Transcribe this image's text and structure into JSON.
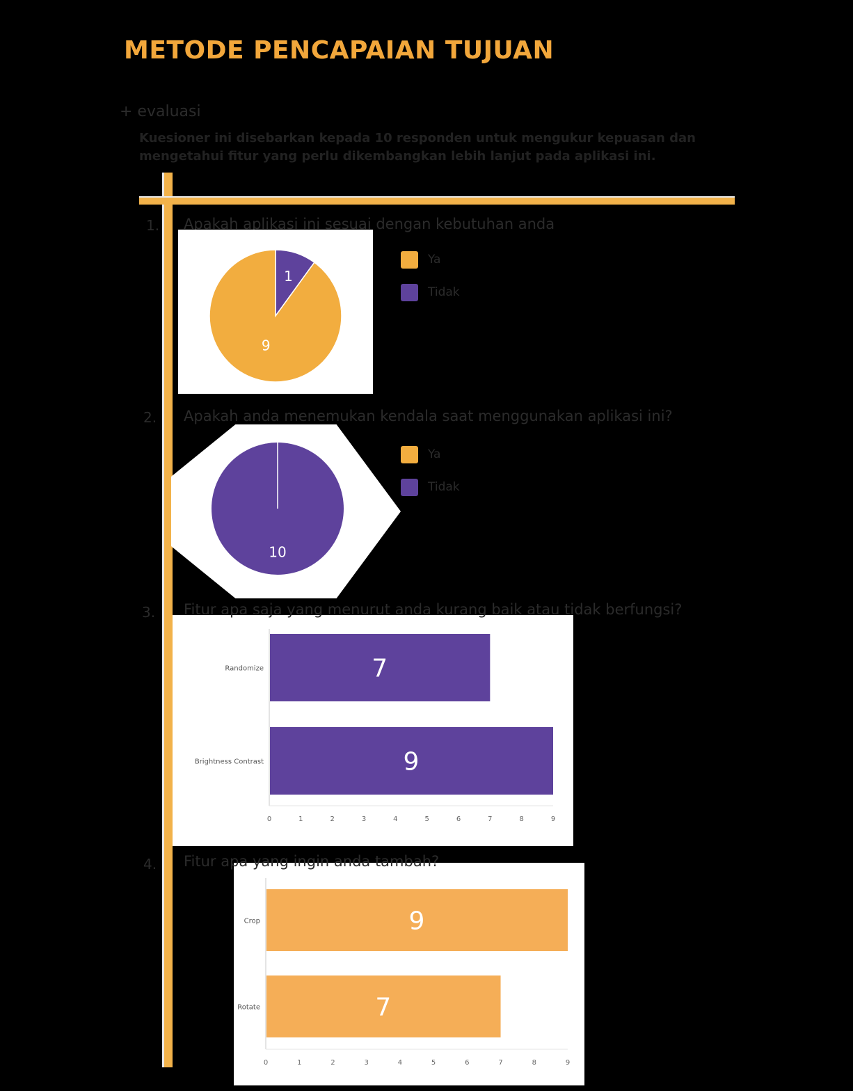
{
  "page": {
    "title": "METODE PENCAPAIAN TUJUAN",
    "section_label": "+ evaluasi",
    "intro": "Kuesioner ini disebarkan kepada 10 responden untuk mengukur kepuasan dan mengetahui fitur yang perlu dikembangkan lebih lanjut pada aplikasi ini."
  },
  "colors": {
    "orange": "#f2ad3f",
    "purple": "#5e429c",
    "bar_orange": "#f5ae57",
    "line": "#f2b24a"
  },
  "questions": [
    {
      "num": "1.",
      "text": "Apakah aplikasi ini sesuai dengan kebutuhan anda"
    },
    {
      "num": "2.",
      "text": "Apakah anda menemukan kendala saat menggunakan aplikasi ini?"
    },
    {
      "num": "3.",
      "text": "Fitur apa saja yang menurut anda kurang baik atau tidak berfungsi?"
    },
    {
      "num": "4.",
      "text": "Fitur apa yang ingin anda tambah?"
    }
  ],
  "chart_data": [
    {
      "type": "pie",
      "slices": [
        {
          "label": "Ya",
          "value": 9,
          "color": "#f2ad3f"
        },
        {
          "label": "Tidak",
          "value": 1,
          "color": "#5e429c"
        }
      ],
      "legend_position": "right"
    },
    {
      "type": "pie",
      "slices": [
        {
          "label": "Ya",
          "value": 0,
          "color": "#f2ad3f"
        },
        {
          "label": "Tidak",
          "value": 10,
          "color": "#5e429c"
        }
      ],
      "legend_position": "right"
    },
    {
      "type": "bar",
      "orientation": "horizontal",
      "categories": [
        "Randomize",
        "Brightness Contrast"
      ],
      "values": [
        7,
        9
      ],
      "xlim": [
        0,
        9
      ],
      "ticks": [
        0,
        1,
        2,
        3,
        4,
        5,
        6,
        7,
        8,
        9
      ],
      "color": "#5e429c"
    },
    {
      "type": "bar",
      "orientation": "horizontal",
      "categories": [
        "Crop",
        "Rotate"
      ],
      "values": [
        9,
        7
      ],
      "xlim": [
        0,
        9
      ],
      "ticks": [
        0,
        1,
        2,
        3,
        4,
        5,
        6,
        7,
        8,
        9
      ],
      "color": "#f5ae57"
    }
  ]
}
